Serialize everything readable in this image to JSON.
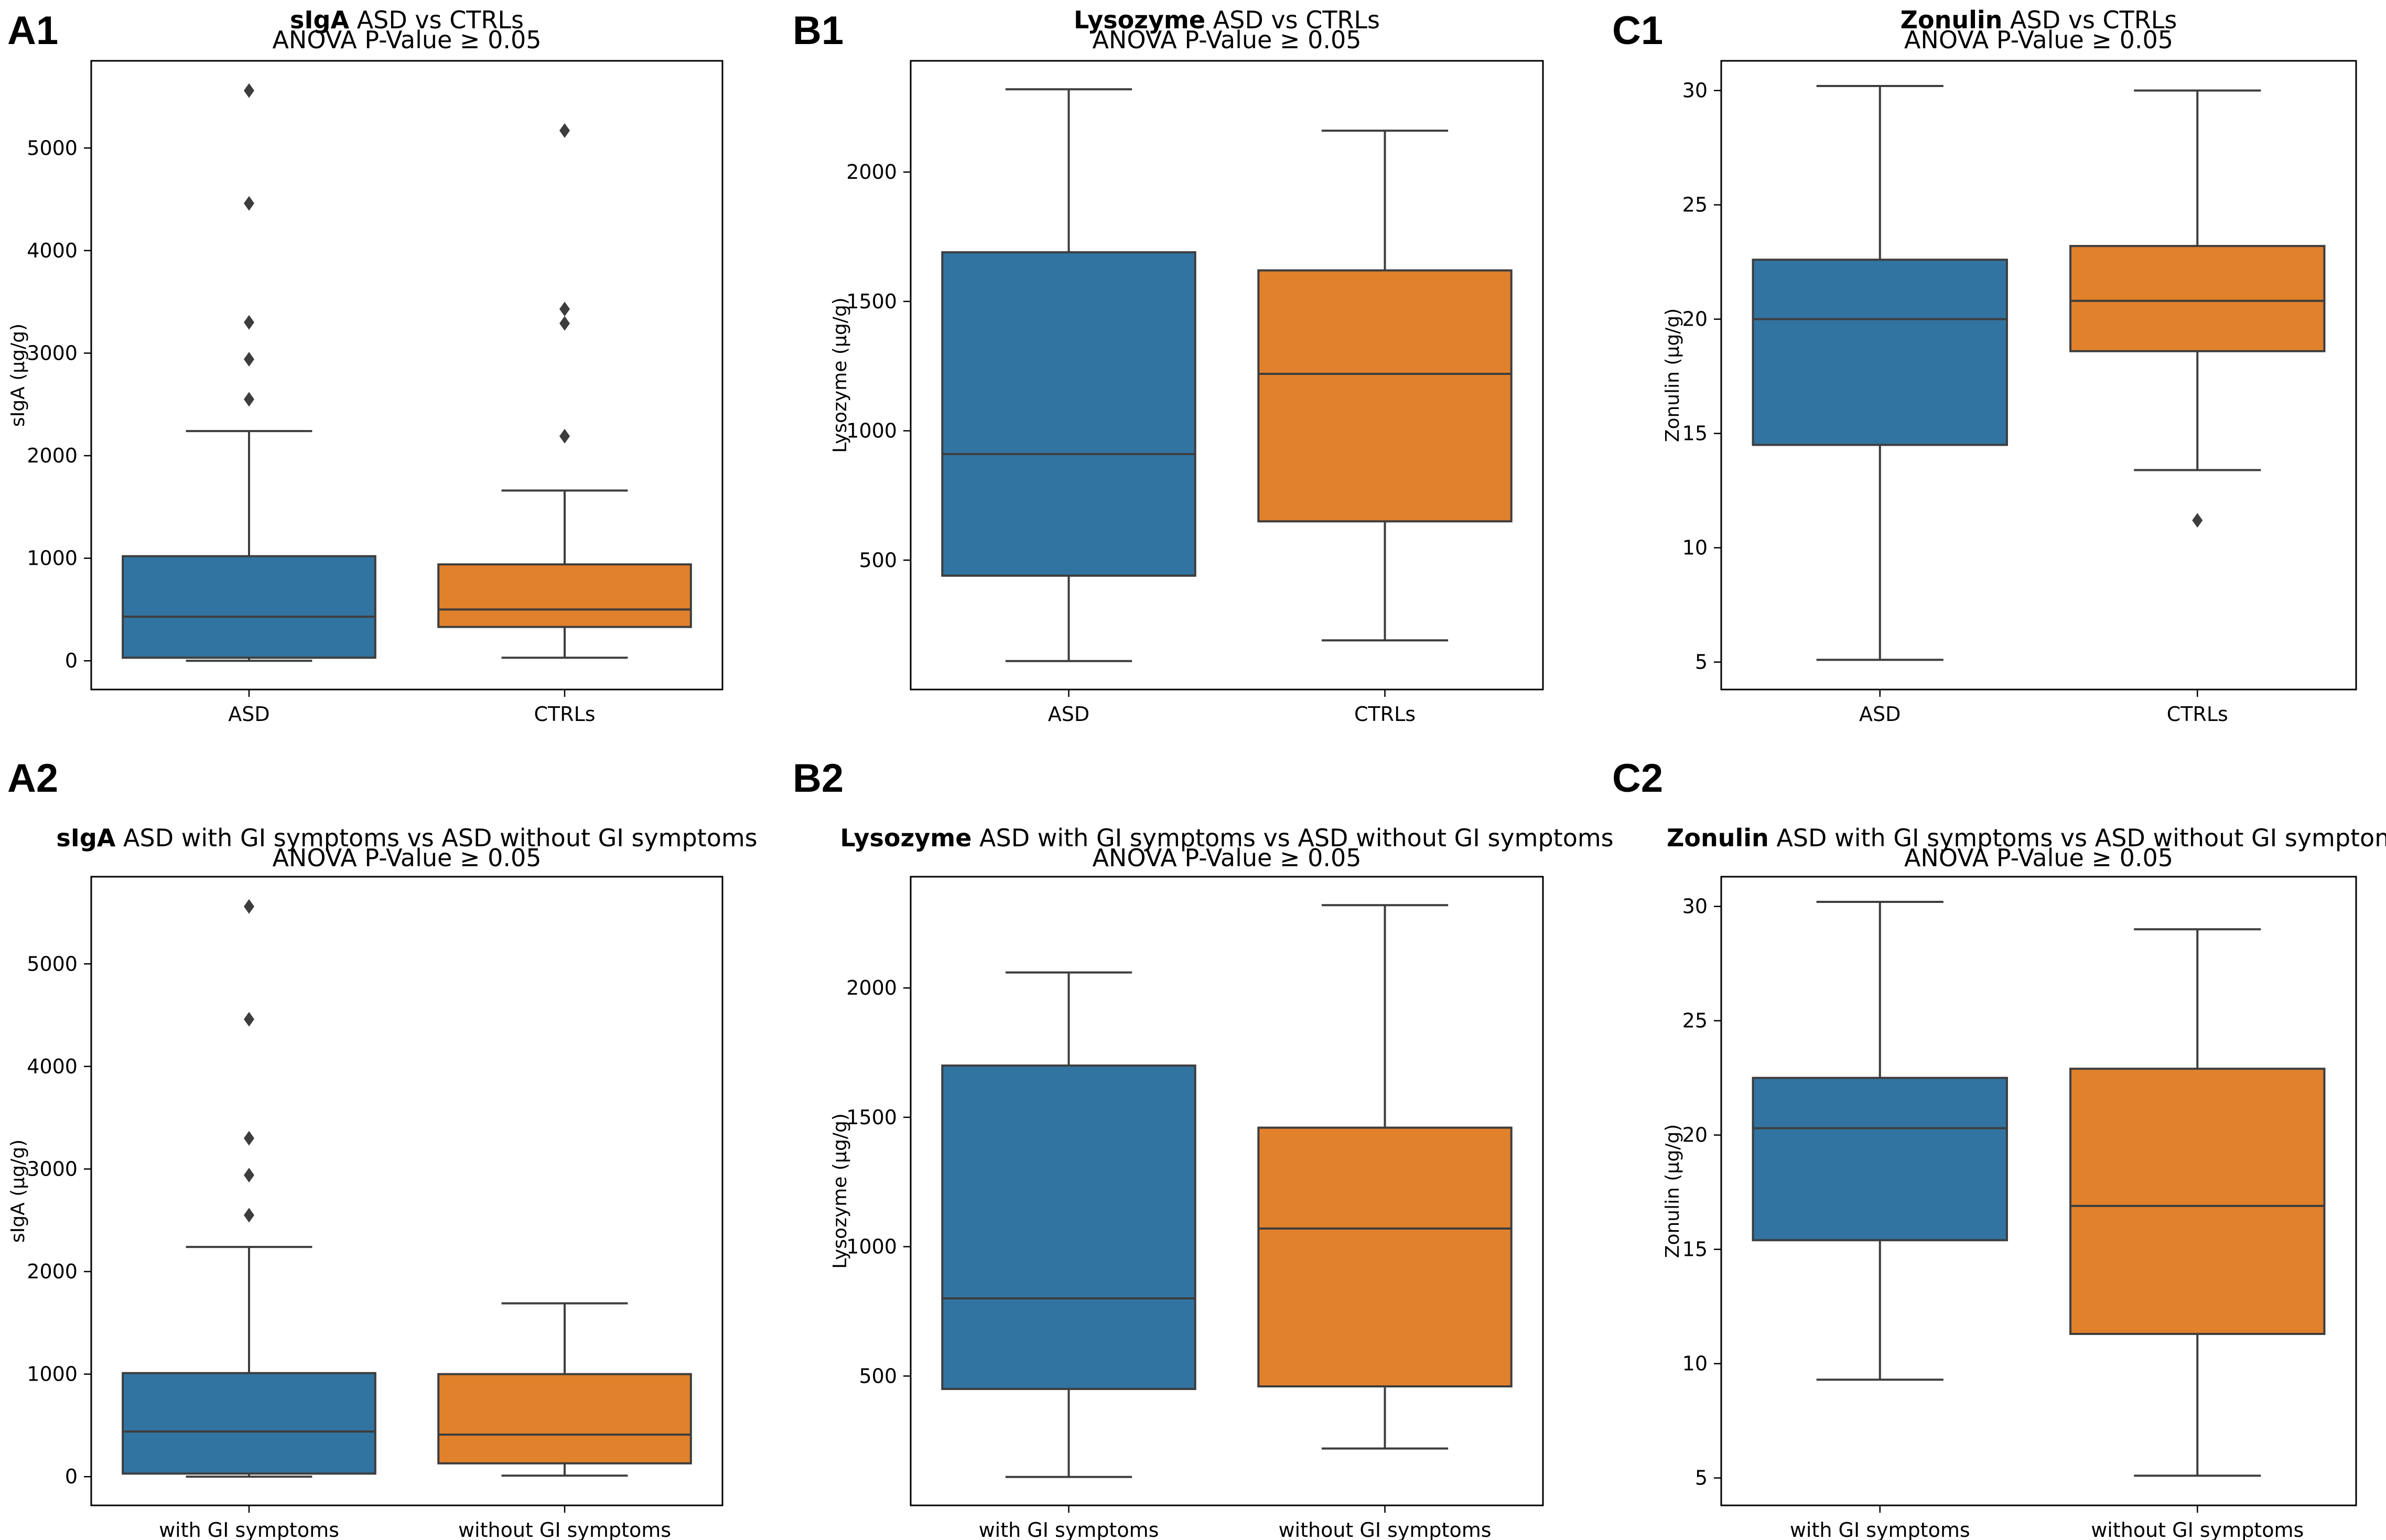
{
  "figure": {
    "panels": [
      "A1",
      "B1",
      "C1",
      "A2",
      "B2",
      "C2"
    ]
  },
  "colors": {
    "group1": "#3274a1",
    "group2": "#e1812c",
    "line": "#3d3d3d",
    "outlier": "#3d3d3d"
  },
  "chart_data": [
    {
      "panel": "A1",
      "type": "box",
      "title_bold": "sIgA",
      "title_rest": " ASD vs CTRLs",
      "subtitle": "ANOVA P-Value ≥ 0.05",
      "ylabel": "sIgA (µg/g)",
      "ylim": [
        -280,
        5850
      ],
      "yticks": [
        0,
        1000,
        2000,
        3000,
        4000,
        5000
      ],
      "categories": [
        "ASD",
        "CTRLs"
      ],
      "boxes": [
        {
          "name": "ASD",
          "whislo": 0,
          "q1": 30,
          "med": 430,
          "q3": 1020,
          "whishi": 2240,
          "fliers": [
            2550,
            2940,
            3300,
            4460,
            5560
          ]
        },
        {
          "name": "CTRLs",
          "whislo": 30,
          "q1": 330,
          "med": 500,
          "q3": 940,
          "whishi": 1660,
          "fliers": [
            2190,
            3290,
            3430,
            5170
          ]
        }
      ]
    },
    {
      "panel": "B1",
      "type": "box",
      "title_bold": "Lysozyme",
      "title_rest": " ASD vs CTRLs",
      "subtitle": "ANOVA P-Value ≥ 0.05",
      "ylabel": "Lysozyme (µg/g)",
      "ylim": [
        0,
        2430
      ],
      "yticks": [
        500,
        1000,
        1500,
        2000
      ],
      "categories": [
        "ASD",
        "CTRLs"
      ],
      "boxes": [
        {
          "name": "ASD",
          "whislo": 110,
          "q1": 440,
          "med": 910,
          "q3": 1690,
          "whishi": 2320,
          "fliers": []
        },
        {
          "name": "CTRLs",
          "whislo": 190,
          "q1": 650,
          "med": 1220,
          "q3": 1620,
          "whishi": 2160,
          "fliers": []
        }
      ]
    },
    {
      "panel": "C1",
      "type": "box",
      "title_bold": "Zonulin",
      "title_rest": " ASD vs CTRLs",
      "subtitle": "ANOVA P-Value ≥ 0.05",
      "ylabel": "Zonulin (µg/g)",
      "ylim": [
        3.8,
        31.3
      ],
      "yticks": [
        5,
        10,
        15,
        20,
        25,
        30
      ],
      "categories": [
        "ASD",
        "CTRLs"
      ],
      "boxes": [
        {
          "name": "ASD",
          "whislo": 5.1,
          "q1": 14.5,
          "med": 20.0,
          "q3": 22.6,
          "whishi": 30.2,
          "fliers": []
        },
        {
          "name": "CTRLs",
          "whislo": 13.4,
          "q1": 18.6,
          "med": 20.8,
          "q3": 23.2,
          "whishi": 30.0,
          "fliers": [
            11.2
          ]
        }
      ]
    },
    {
      "panel": "A2",
      "type": "box",
      "title_bold": "sIgA",
      "title_rest": " ASD with GI symptoms vs ASD without GI symptoms",
      "subtitle": "ANOVA P-Value ≥ 0.05",
      "ylabel": "sIgA (µg/g)",
      "ylim": [
        -280,
        5850
      ],
      "yticks": [
        0,
        1000,
        2000,
        3000,
        4000,
        5000
      ],
      "categories": [
        "with GI symptoms",
        "without GI symptoms"
      ],
      "boxes": [
        {
          "name": "with GI symptoms",
          "whislo": 0,
          "q1": 30,
          "med": 440,
          "q3": 1010,
          "whishi": 2240,
          "fliers": [
            2550,
            2940,
            3300,
            4460,
            5560
          ]
        },
        {
          "name": "without GI symptoms",
          "whislo": 10,
          "q1": 130,
          "med": 410,
          "q3": 1000,
          "whishi": 1690,
          "fliers": []
        }
      ]
    },
    {
      "panel": "B2",
      "type": "box",
      "title_bold": "Lysozyme",
      "title_rest": " ASD with GI symptoms vs ASD without GI symptoms",
      "subtitle": "ANOVA P-Value ≥ 0.05",
      "ylabel": "Lysozyme (µg/g)",
      "ylim": [
        0,
        2430
      ],
      "yticks": [
        500,
        1000,
        1500,
        2000
      ],
      "categories": [
        "with GI symptoms",
        "without GI symptoms"
      ],
      "boxes": [
        {
          "name": "with GI symptoms",
          "whislo": 110,
          "q1": 450,
          "med": 800,
          "q3": 1700,
          "whishi": 2060,
          "fliers": []
        },
        {
          "name": "without GI symptoms",
          "whislo": 220,
          "q1": 460,
          "med": 1070,
          "q3": 1460,
          "whishi": 2320,
          "fliers": []
        }
      ]
    },
    {
      "panel": "C2",
      "type": "box",
      "title_bold": "Zonulin",
      "title_rest": " ASD with GI symptoms vs ASD without GI symptoms",
      "subtitle": "ANOVA P-Value ≥ 0.05",
      "ylabel": "Zonulin (µg/g)",
      "ylim": [
        3.8,
        31.3
      ],
      "yticks": [
        5,
        10,
        15,
        20,
        25,
        30
      ],
      "categories": [
        "with GI symptoms",
        "without GI symptoms"
      ],
      "boxes": [
        {
          "name": "with GI symptoms",
          "whislo": 9.3,
          "q1": 15.4,
          "med": 20.3,
          "q3": 22.5,
          "whishi": 30.2,
          "fliers": []
        },
        {
          "name": "without GI symptoms",
          "whislo": 5.1,
          "q1": 11.3,
          "med": 16.9,
          "q3": 22.9,
          "whishi": 29.0,
          "fliers": []
        }
      ]
    }
  ]
}
